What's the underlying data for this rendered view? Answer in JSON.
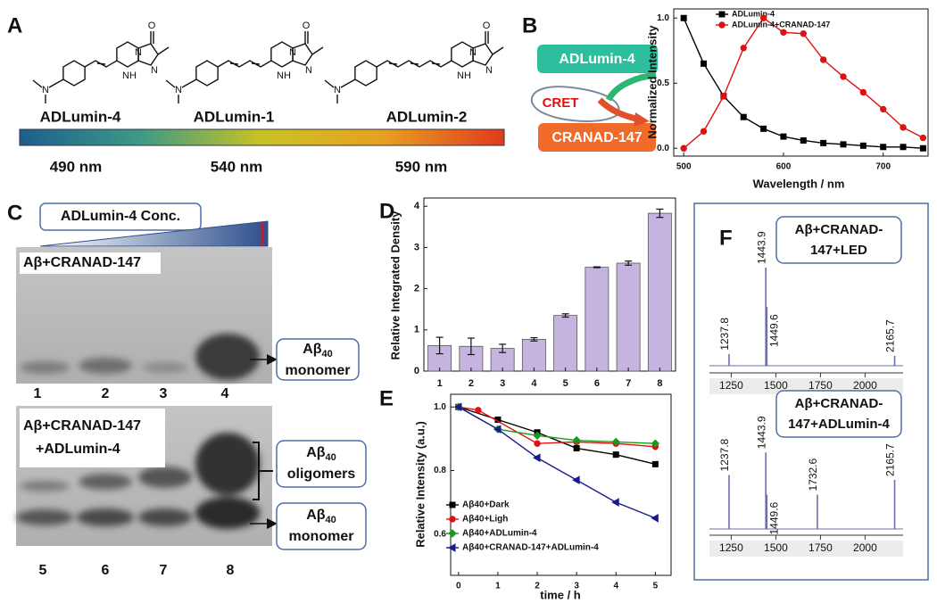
{
  "panel_labels": [
    "A",
    "B",
    "C",
    "D",
    "E",
    "F"
  ],
  "panel_a": {
    "molecules": [
      {
        "name": "ADLumin-4",
        "atoms": [
          "N",
          "O",
          "N",
          "N",
          "NH"
        ]
      },
      {
        "name": "ADLumin-1",
        "atoms": [
          "N",
          "O",
          "N",
          "N",
          "NH"
        ]
      },
      {
        "name": "ADLumin-2",
        "atoms": [
          "N",
          "O",
          "N",
          "N",
          "NH"
        ]
      }
    ],
    "wavelengths": [
      "490 nm",
      "540 nm",
      "590 nm"
    ]
  },
  "panel_b": {
    "donor": "ADLumin-4",
    "process": "CRET",
    "acceptor": "CRANAD-147"
  },
  "panel_c": {
    "gradient_label": "ADLumin-4 Conc.",
    "top_gel_label": "Aβ+CRANAD-147",
    "bottom_gel_label": [
      "Aβ+CRANAD-147",
      "+ADLumin-4"
    ],
    "top_lanes": [
      "1",
      "2",
      "3",
      "4"
    ],
    "bottom_lanes": [
      "5",
      "6",
      "7",
      "8"
    ],
    "bands": [
      {
        "species": "Aβ",
        "sub": "40",
        "state": "monomer"
      },
      {
        "species": "Aβ",
        "sub": "40",
        "state": "oligomers"
      },
      {
        "species": "Aβ",
        "sub": "40",
        "state": "monomer"
      }
    ]
  },
  "chart_data": [
    {
      "type": "line",
      "xlabel": "Wavelength / nm",
      "ylabel": "Normalized Intensity",
      "xlim": [
        490,
        745
      ],
      "ylim": [
        -0.06,
        1.07
      ],
      "xticks": [
        500,
        600,
        700
      ],
      "yticks": [
        {
          "value": 0,
          "label": "0.0"
        },
        0.5,
        {
          "value": 1,
          "label": "1.0"
        }
      ],
      "legend": "top-right",
      "series": [
        {
          "name": "ADLumin-4",
          "color": "#000000",
          "marker": "square",
          "x": [
            500,
            520,
            540,
            560,
            580,
            600,
            620,
            640,
            660,
            680,
            700,
            720,
            740
          ],
          "values": [
            1.0,
            0.65,
            0.4,
            0.24,
            0.15,
            0.09,
            0.06,
            0.04,
            0.03,
            0.02,
            0.01,
            0.01,
            0.0
          ]
        },
        {
          "name": "ADLumin-4+CRANAD-147",
          "color": "#e01010",
          "marker": "circle",
          "x": [
            500,
            520,
            540,
            560,
            580,
            600,
            620,
            640,
            660,
            680,
            700,
            720,
            740
          ],
          "values": [
            0.0,
            0.13,
            0.4,
            0.77,
            1.0,
            0.89,
            0.88,
            0.68,
            0.55,
            0.43,
            0.3,
            0.16,
            0.08
          ]
        }
      ]
    },
    {
      "type": "bar",
      "ylabel": "Relative Integrated Density",
      "color": "#c6b4e0",
      "categories": [
        "1",
        "2",
        "3",
        "4",
        "5",
        "6",
        "7",
        "8"
      ],
      "values": [
        0.62,
        0.6,
        0.55,
        0.77,
        1.35,
        2.52,
        2.62,
        3.83
      ],
      "errors": [
        0.2,
        0.2,
        0.1,
        0.04,
        0.04,
        0.01,
        0.05,
        0.1
      ],
      "ylim": [
        0,
        4.2
      ],
      "yticks": [
        0,
        1,
        2,
        3,
        4
      ]
    },
    {
      "type": "line",
      "xlabel": "time / h",
      "ylabel": "Relative Intensity (a.u.)",
      "xlim": [
        -0.2,
        5.4
      ],
      "ylim": [
        0.47,
        1.04
      ],
      "xticks": [
        0,
        1,
        2,
        3,
        4,
        5
      ],
      "yticks": [
        0.6,
        0.8,
        {
          "value": 1,
          "label": "1.0"
        }
      ],
      "legend": "bottom-left",
      "series": [
        {
          "name": "Aβ40+Dark",
          "color": "#000000",
          "marker": "square",
          "x": [
            0,
            1,
            2,
            3,
            4,
            5
          ],
          "values": [
            1.0,
            0.96,
            0.92,
            0.87,
            0.85,
            0.82
          ]
        },
        {
          "name": "Aβ40+Ligh",
          "color": "#e01010",
          "marker": "circle",
          "x": [
            0,
            0.5,
            2,
            3,
            4,
            5
          ],
          "values": [
            1.0,
            0.99,
            0.885,
            0.89,
            0.885,
            0.875
          ]
        },
        {
          "name": "Aβ40+ADLumin-4",
          "color": "#1a9a1a",
          "marker": "diamond",
          "x": [
            0,
            1,
            2,
            3,
            4,
            5
          ],
          "values": [
            1.0,
            0.93,
            0.91,
            0.895,
            0.89,
            0.885
          ]
        },
        {
          "name": "Aβ40+CRANAD-147+ADLumin-4",
          "color": "#1a1a8c",
          "marker": "triangle",
          "x": [
            0,
            1,
            2,
            3,
            4,
            5
          ],
          "values": [
            1.0,
            0.93,
            0.84,
            0.77,
            0.7,
            0.65
          ]
        }
      ]
    },
    {
      "type": "spectrum",
      "title": [
        "Aβ+CRANAD-",
        "147+LED"
      ],
      "color": "#6a6fb0",
      "xlim": [
        1128,
        2213
      ],
      "xticks": [
        1250,
        1500,
        1750,
        2000
      ],
      "x": [
        1237.8,
        1443.9,
        1449.6,
        2165.7
      ],
      "values": [
        0.12,
        1.0,
        0.6,
        0.1
      ]
    },
    {
      "type": "spectrum",
      "title": [
        "Aβ+CRANAD-",
        "147+ADLumin-4"
      ],
      "color": "#6a6fb0",
      "xlim": [
        1128,
        2213
      ],
      "xticks": [
        1250,
        1500,
        1750,
        2000
      ],
      "x": [
        1237.8,
        1443.9,
        1449.6,
        1732.6,
        2165.7
      ],
      "values": [
        0.55,
        0.78,
        0.35,
        0.35,
        0.5
      ]
    }
  ]
}
